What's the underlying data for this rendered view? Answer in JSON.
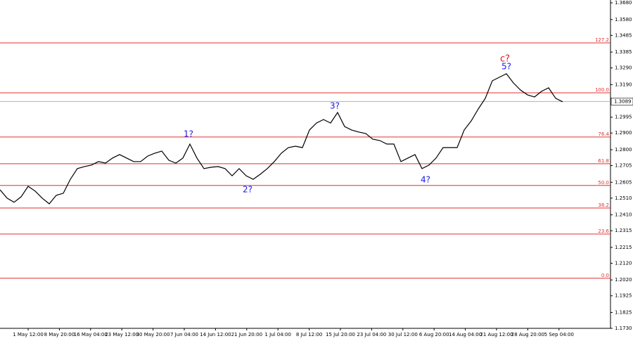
{
  "chart_data": {
    "type": "line",
    "series": [
      {
        "color": "#000000",
        "values": [
          1.256,
          1.251,
          1.2485,
          1.2518,
          1.2581,
          1.2552,
          1.251,
          1.2476,
          1.2527,
          1.2539,
          1.2623,
          1.2687,
          1.2699,
          1.2708,
          1.2729,
          1.272,
          1.275,
          1.2771,
          1.275,
          1.2729,
          1.2729,
          1.2762,
          1.2779,
          1.2792,
          1.2737,
          1.272,
          1.275,
          1.2834,
          1.275,
          1.2687,
          1.2695,
          1.2699,
          1.2687,
          1.2644,
          1.2687,
          1.2644,
          1.2623,
          1.2653,
          1.2687,
          1.2729,
          1.2779,
          1.2813,
          1.2821,
          1.2813,
          1.2918,
          1.296,
          1.2981,
          1.296,
          1.3023,
          1.2939,
          1.2918,
          1.2906,
          1.2897,
          1.2863,
          1.2855,
          1.2834,
          1.2834,
          1.2729,
          1.275,
          1.2771,
          1.2687,
          1.2708,
          1.275,
          1.2813,
          1.2813,
          1.2813,
          1.2918,
          1.2973,
          1.3044,
          1.3108,
          1.3213,
          1.3234,
          1.3255,
          1.32,
          1.3158,
          1.3129,
          1.3116,
          1.315,
          1.3171,
          1.3108,
          1.3087
        ]
      }
    ],
    "x_labels": [
      "1 May 12:00",
      "8 May 20:00",
      "16 May 04:00",
      "23 May 12:00",
      "30 May 20:00",
      "7 Jun 04:00",
      "14 Jun 12:00",
      "21 Jun 20:00",
      "1 Jul 04:00",
      "8 Jul 12:00",
      "15 Jul 20:00",
      "23 Jul 04:00",
      "30 Jul 12:00",
      "6 Aug 20:00",
      "14 Aug 04:00",
      "21 Aug 12:00",
      "28 Aug 20:00",
      "5 Sep 04:00"
    ],
    "ylim": [
      1.173,
      1.3697
    ],
    "yticks": [
      {
        "value": 1.368,
        "label": "1.3680"
      },
      {
        "value": 1.358,
        "label": "1.3580"
      },
      {
        "value": 1.3485,
        "label": "1.3485"
      },
      {
        "value": 1.3385,
        "label": "1.3385"
      },
      {
        "value": 1.329,
        "label": "1.3290"
      },
      {
        "value": 1.319,
        "label": "1.3190"
      },
      {
        "value": 1.2995,
        "label": "1.2995"
      },
      {
        "value": 1.29,
        "label": "1.2900"
      },
      {
        "value": 1.28,
        "label": "1.2800"
      },
      {
        "value": 1.2705,
        "label": "1.2705"
      },
      {
        "value": 1.2605,
        "label": "1.2605"
      },
      {
        "value": 1.251,
        "label": "1.2510"
      },
      {
        "value": 1.241,
        "label": "1.2410"
      },
      {
        "value": 1.2315,
        "label": "1.2315"
      },
      {
        "value": 1.2215,
        "label": "1.2215"
      },
      {
        "value": 1.212,
        "label": "1.2120"
      },
      {
        "value": 1.202,
        "label": "1.2020"
      },
      {
        "value": 1.1925,
        "label": "1.1925"
      },
      {
        "value": 1.1825,
        "label": "1.1825"
      },
      {
        "value": 1.173,
        "label": "1.1730"
      }
    ],
    "current_price": {
      "value": 1.3089,
      "label": "1.3089"
    },
    "fib_levels": [
      {
        "value": 1.344,
        "label": "127.2"
      },
      {
        "value": 1.3141,
        "label": "100.0"
      },
      {
        "value": 1.2876,
        "label": "76.4"
      },
      {
        "value": 1.2716,
        "label": "61.8"
      },
      {
        "value": 1.2586,
        "label": "50.0"
      },
      {
        "value": 1.2451,
        "label": "38.2"
      },
      {
        "value": 1.2295,
        "label": "23.6"
      },
      {
        "value": 1.203,
        "label": "0.0"
      }
    ],
    "annotations": [
      "1?",
      "2?",
      "3?",
      "4?",
      "5?",
      "c?"
    ]
  }
}
